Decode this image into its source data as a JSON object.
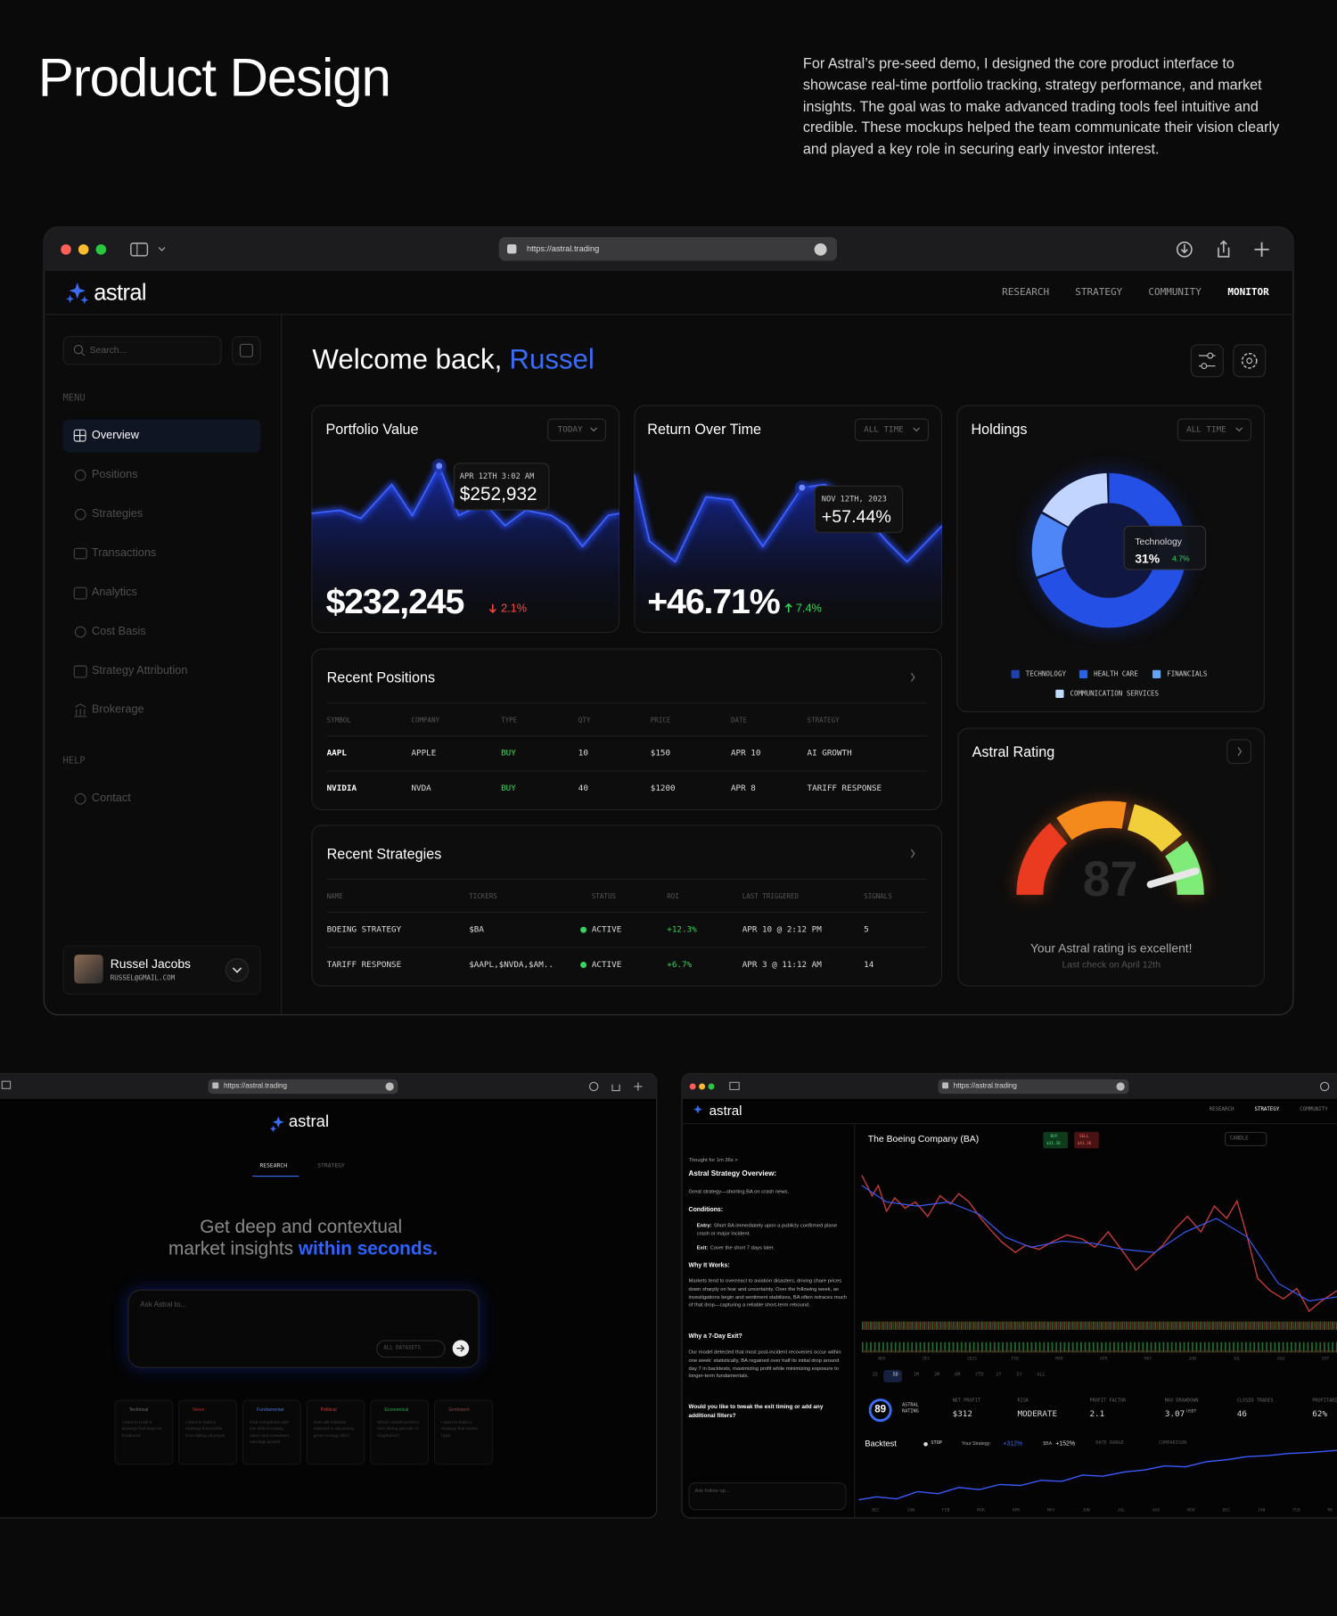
{
  "header": {
    "title": "Product Design",
    "description": "For Astral’s pre-seed demo, I designed the core product interface to showcase real-time portfolio tracking, strategy performance, and market insights. The goal was to make advanced trading tools feel intuitive and credible. These mockups helped the team communicate their vision clearly and played a key role in securing early investor interest."
  },
  "dashboard": {
    "url": "https://astral.trading",
    "logo": "astral",
    "nav": [
      "RESEARCH",
      "STRATEGY",
      "COMMUNITY",
      "MONITOR"
    ],
    "search_placeholder": "Search...",
    "menu_label": "MENU",
    "menu": [
      "Overview",
      "Positions",
      "Strategies",
      "Transactions",
      "Analytics",
      "Cost Basis",
      "Strategy Attribution",
      "Brokerage"
    ],
    "help_label": "HELP",
    "help": [
      "Contact"
    ],
    "user": {
      "name": "Russel Jacobs",
      "email": "RUSSEL@GMAIL.COM"
    },
    "welcome": {
      "greeting": "Welcome back,",
      "name": "Russel"
    },
    "portfolio": {
      "title": "Portfolio Value",
      "range": "TODAY",
      "tooltip_date": "APR 12TH 3:02 AM",
      "tooltip_value": "$252,932",
      "value": "$232,245",
      "change": "2.1%"
    },
    "returns": {
      "title": "Return Over Time",
      "range": "ALL TIME",
      "tooltip_date": "NOV 12TH, 2023",
      "tooltip_value": "+57.44%",
      "value": "+46.71%",
      "change": "7.4%"
    },
    "holdings": {
      "title": "Holdings",
      "range": "ALL TIME",
      "tooltip_label": "Technology",
      "tooltip_value": "31%",
      "tooltip_change": "4.7%",
      "legend": [
        "TECHNOLOGY",
        "HEALTH CARE",
        "FINANCIALS",
        "COMMUNICATION SERVICES"
      ]
    },
    "positions": {
      "title": "Recent Positions",
      "columns": [
        "SYMBOL",
        "COMPANY",
        "TYPE",
        "QTY",
        "PRICE",
        "DATE",
        "STRATEGY"
      ],
      "rows": [
        [
          "AAPL",
          "APPLE",
          "BUY",
          "10",
          "$150",
          "APR 10",
          "AI GROWTH"
        ],
        [
          "NVIDIA",
          "NVDA",
          "BUY",
          "40",
          "$1200",
          "APR 8",
          "TARIFF RESPONSE"
        ]
      ]
    },
    "strategies": {
      "title": "Recent Strategies",
      "columns": [
        "NAME",
        "TICKERS",
        "STATUS",
        "ROI",
        "LAST TRIGGERED",
        "SIGNALS"
      ],
      "rows": [
        [
          "BOEING STRATEGY",
          "$BA",
          "ACTIVE",
          "+12.3%",
          "APR 10 @ 2:12 PM",
          "5"
        ],
        [
          "TARIFF RESPONSE",
          "$AAPL,$NVDA,$AM..",
          "ACTIVE",
          "+6.7%",
          "APR 3 @ 11:12 AM",
          "14"
        ]
      ]
    },
    "rating": {
      "title": "Astral Rating",
      "score": "87",
      "message": "Your Astral rating is excellent!",
      "last_check": "Last check on April 12th"
    }
  },
  "research": {
    "url": "https://astral.trading",
    "logo": "astral",
    "tabs": [
      "RESEARCH",
      "STRATEGY"
    ],
    "headline": "Get deep and contextual",
    "headline2": "market insights",
    "headline_highlight": "within seconds.",
    "input_placeholder": "Ask Astral to...",
    "datasets": "ALL DATASETS",
    "cards": [
      {
        "title": "Technical",
        "text": "I want to build a strategy that buys on breakouts"
      },
      {
        "title": "News",
        "text": "I want to build a strategy that profits from falling oil prices"
      },
      {
        "title": "Fundamental",
        "text": "Find companies with low debt-to-equity ratios and consistent earnings growth"
      },
      {
        "title": "Political",
        "text": "How will markets respond to upcoming green energy bills?"
      },
      {
        "title": "Economical",
        "text": "Which assets perform well during periods of stagflation?"
      },
      {
        "title": "Sentiment",
        "text": "I want to build a strategy that tracks hype"
      }
    ]
  },
  "strategy": {
    "url": "https://astral.trading",
    "logo": "astral",
    "nav": [
      "RESEARCH",
      "STRATEGY",
      "COMMUNITY"
    ],
    "thought": "Thought for 1m 36s >",
    "overview_title": "Astral Strategy Overview:",
    "summary": "Great strategy—shorting BA on crash news.",
    "conditions_title": "Conditions:",
    "conditions": [
      {
        "label": "Entry:",
        "text": "Short BA immediately upon a publicly confirmed plane crash or major incident."
      },
      {
        "label": "Exit:",
        "text": "Cover the short 7 days later."
      }
    ],
    "why_title": "Why It Works:",
    "why_text": "Markets tend to overreact to aviation disasters, driving share prices down sharply on fear and uncertainty. Over the following week, as investigations begin and sentiment stabilizes, BA often retraces much of that drop—capturing a reliable short-term rebound.",
    "exit_title": "Why a 7-Day Exit?",
    "exit_text": "Our model detected that most post-incident recoveries occur within one week: statistically, BA regained over half its initial drop around day 7 in backtests, maximizing profit while minimizing exposure to longer-term fundamentals.",
    "question": "Would you like to tweak the exit timing or add any additional filters?",
    "followup": "Ask follow-up...",
    "company": "The Boeing Company (BA)",
    "buy_label": "BUY",
    "buy_price": "$41.36",
    "sell_label": "SELL",
    "sell_price": "$41.36",
    "chart_type": "CANDLE",
    "chart_months": [
      "NOV",
      "DEC",
      "2025",
      "FEB",
      "MAR",
      "APR",
      "MAY",
      "JUN",
      "JUL",
      "AUG",
      "SEP"
    ],
    "timeframes": [
      "1D",
      "5D",
      "1M",
      "3M",
      "6M",
      "YTD",
      "1Y",
      "5Y",
      "ALL"
    ],
    "rating": "89",
    "rating_label": "ASTRAL RATING",
    "metrics": [
      {
        "label": "NET PROFIT",
        "value": "$312"
      },
      {
        "label": "RISK",
        "value": "MODERATE"
      },
      {
        "label": "PROFIT FACTOR",
        "value": "2.1"
      },
      {
        "label": "MAX DRAWDOWN",
        "value": "3.07",
        "unit": "USDT"
      },
      {
        "label": "CLOSED TRADES",
        "value": "46"
      },
      {
        "label": "PROFITABILITY",
        "value": "62%"
      }
    ],
    "backtest": "Backtest",
    "stop": "STOP",
    "your_strategy": "Your Strategy:",
    "your_strategy_value": "+312%",
    "ticker": "$BA",
    "ticker_value": "+152%",
    "date_range": "DATE RANGE",
    "comparison": "COMPARISON",
    "backtest_months": [
      "DEC",
      "JAN",
      "FEB",
      "MAR",
      "APR",
      "MAY",
      "JUN",
      "JUL",
      "AUG",
      "NOV",
      "DEC",
      "JAN",
      "FEB",
      "MA"
    ]
  }
}
